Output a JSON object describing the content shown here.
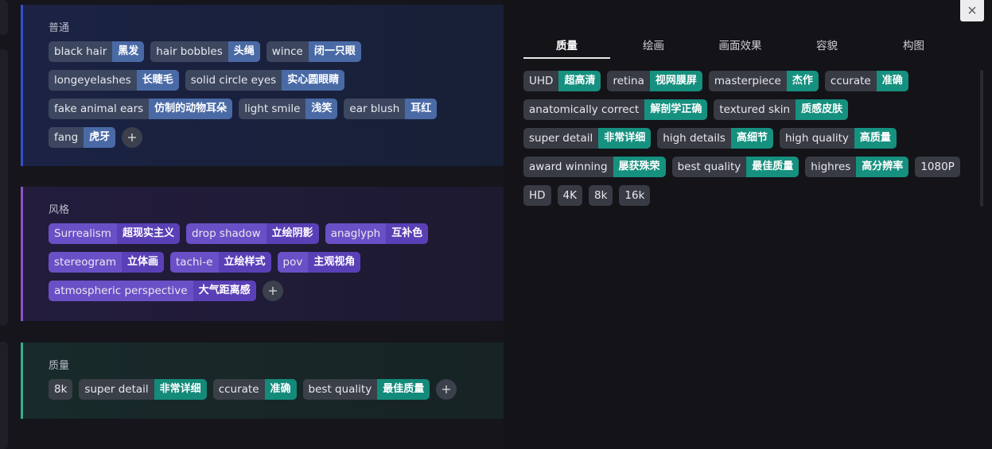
{
  "groups": [
    {
      "title": "普通",
      "tags": [
        {
          "en": "black hair",
          "zh": "黑发"
        },
        {
          "en": "hair bobbles",
          "zh": "头绳"
        },
        {
          "en": "wince",
          "zh": "闭一只眼"
        },
        {
          "en": "longeyelashes",
          "zh": "长睫毛"
        },
        {
          "en": "solid circle eyes",
          "zh": "实心圆眼睛"
        },
        {
          "en": "fake animal ears",
          "zh": "仿制的动物耳朵"
        },
        {
          "en": "light smile",
          "zh": "浅笑"
        },
        {
          "en": "ear blush",
          "zh": "耳红"
        },
        {
          "en": "fang",
          "zh": "虎牙"
        }
      ]
    },
    {
      "title": "风格",
      "tags": [
        {
          "en": "Surrealism",
          "zh": "超现实主义"
        },
        {
          "en": "drop shadow",
          "zh": "立绘阴影"
        },
        {
          "en": "anaglyph",
          "zh": "互补色"
        },
        {
          "en": "stereogram",
          "zh": "立体画"
        },
        {
          "en": "tachi-e",
          "zh": "立绘样式"
        },
        {
          "en": "pov",
          "zh": "主观视角"
        },
        {
          "en": "atmospheric perspective",
          "zh": "大气距离感"
        }
      ]
    },
    {
      "title": "质量",
      "tags": [
        {
          "en": "8k"
        },
        {
          "en": "super detail",
          "zh": "非常详细"
        },
        {
          "en": "ccurate",
          "zh": "准确"
        },
        {
          "en": "best quality",
          "zh": "最佳质量"
        }
      ]
    }
  ],
  "tabs": [
    "质量",
    "绘画",
    "画面效果",
    "容貌",
    "构图"
  ],
  "tags": [
    {
      "en": "UHD",
      "zh": "超高清"
    },
    {
      "en": "retina",
      "zh": "视网膜屏"
    },
    {
      "en": "masterpiece",
      "zh": "杰作"
    },
    {
      "en": "ccurate",
      "zh": "准确"
    },
    {
      "en": "anatomically correct",
      "zh": "解剖学正确"
    },
    {
      "en": "textured skin",
      "zh": "质感皮肤"
    },
    {
      "en": "super detail",
      "zh": "非常详细"
    },
    {
      "en": "high details",
      "zh": "高细节"
    },
    {
      "en": "high quality",
      "zh": "高质量"
    },
    {
      "en": "award winning",
      "zh": "屡获殊荣"
    },
    {
      "en": "best quality",
      "zh": "最佳质量"
    },
    {
      "en": "highres",
      "zh": "高分辨率"
    },
    {
      "en": "1080P"
    },
    {
      "en": "HD"
    },
    {
      "en": "4K"
    },
    {
      "en": "8k"
    },
    {
      "en": "16k"
    }
  ]
}
